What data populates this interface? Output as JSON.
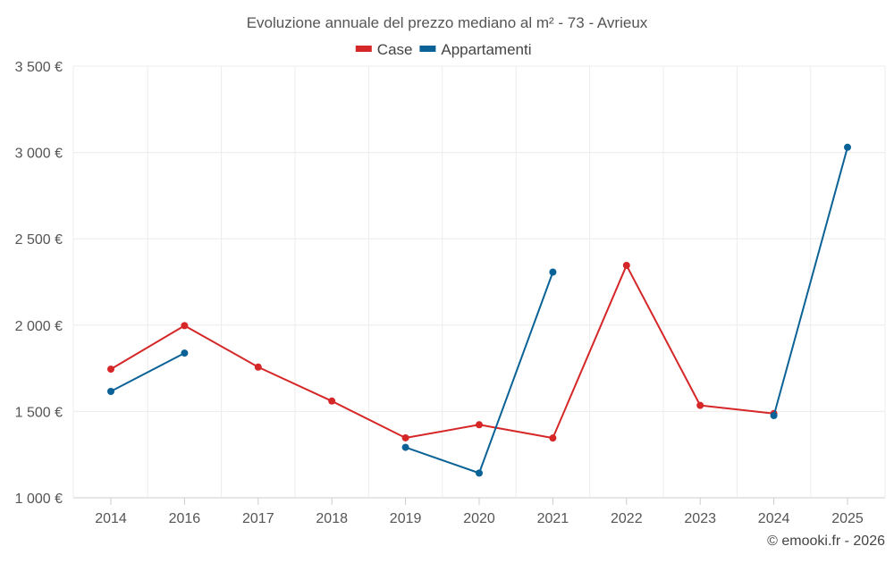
{
  "chart_data": {
    "type": "line",
    "title": "Evoluzione annuale del prezzo mediano al m² - 73 - Avrieux",
    "categories": [
      "2014",
      "2016",
      "2017",
      "2018",
      "2019",
      "2020",
      "2021",
      "2022",
      "2023",
      "2024",
      "2025"
    ],
    "series": [
      {
        "name": "Case",
        "color": "#d62728",
        "values": [
          1745,
          1997,
          1757,
          1560,
          1347,
          1423,
          1346,
          2346,
          1535,
          1488,
          null
        ]
      },
      {
        "name": "Appartamenti",
        "color": "#0b6296",
        "values": [
          1616,
          1838,
          null,
          null,
          1292,
          1143,
          2307,
          null,
          null,
          1476,
          3030
        ]
      }
    ],
    "y_ticks": [
      "1 000 €",
      "1 500 €",
      "2 000 €",
      "2 500 €",
      "3 000 €",
      "3 500 €"
    ],
    "y_tick_values": [
      1000,
      1500,
      2000,
      2500,
      3000,
      3500
    ],
    "ylim": [
      1000,
      3500
    ],
    "xlabel": "",
    "ylabel": "",
    "grid": true,
    "legend_position": "top-center",
    "credit": "© emooki.fr - 2026"
  }
}
